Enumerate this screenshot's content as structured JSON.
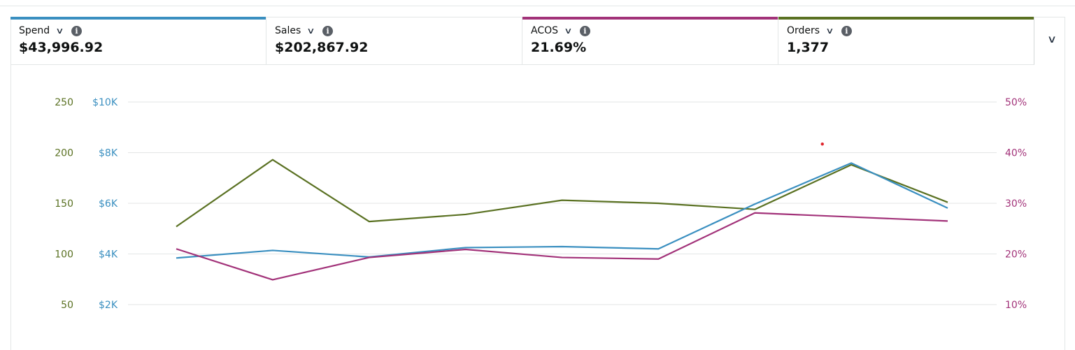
{
  "metrics": [
    {
      "label": "Spend",
      "value": "$43,996.92",
      "color": "#3a8fc0",
      "icon": "chevron-down-icon"
    },
    {
      "label": "Sales",
      "value": "$202,867.92",
      "color": "",
      "icon": "chevron-down-icon"
    },
    {
      "label": "ACOS",
      "value": "21.69%",
      "color": "#a23279",
      "icon": "chevron-down-icon"
    },
    {
      "label": "Orders",
      "value": "1,377",
      "color": "#5a7122",
      "icon": "chevron-down-icon"
    }
  ],
  "collapse_icon": "chevron-down-icon",
  "chart_data": {
    "type": "line",
    "grid": true,
    "axes": {
      "orders": {
        "side": "left-outer",
        "ticks": [
          "250",
          "200",
          "150",
          "100",
          "50"
        ],
        "range": [
          50,
          250
        ],
        "color": "#5a7122"
      },
      "spend": {
        "side": "left-inner",
        "ticks": [
          "$10K",
          "$8K",
          "$6K",
          "$4K",
          "$2K"
        ],
        "range": [
          2000,
          10000
        ],
        "color": "#3a8fc0"
      },
      "acos": {
        "side": "right",
        "ticks": [
          "50%",
          "40%",
          "30%",
          "20%",
          "10%"
        ],
        "range": [
          10,
          50
        ],
        "color": "#a23279"
      }
    },
    "x": [
      1,
      2,
      3,
      4,
      5,
      6,
      7,
      8,
      9
    ],
    "series": [
      {
        "metric": "orders",
        "axis": "orders",
        "color": "#5a7122",
        "values": [
          127,
          193,
          132,
          139,
          153,
          150,
          144,
          188,
          151
        ]
      },
      {
        "metric": "spend",
        "axis": "spend",
        "color": "#3a8fc0",
        "values": [
          3840,
          4140,
          3880,
          4250,
          4290,
          4200,
          5970,
          7590,
          5810
        ]
      },
      {
        "metric": "acos",
        "axis": "acos",
        "color": "#a23279",
        "values": [
          21.0,
          14.9,
          19.3,
          20.9,
          19.3,
          19.0,
          28.1,
          27.3,
          26.5
        ]
      }
    ],
    "marker": {
      "x": 7.7,
      "y_axis": "acos",
      "y": 41.7,
      "color": "#e0262d"
    }
  }
}
